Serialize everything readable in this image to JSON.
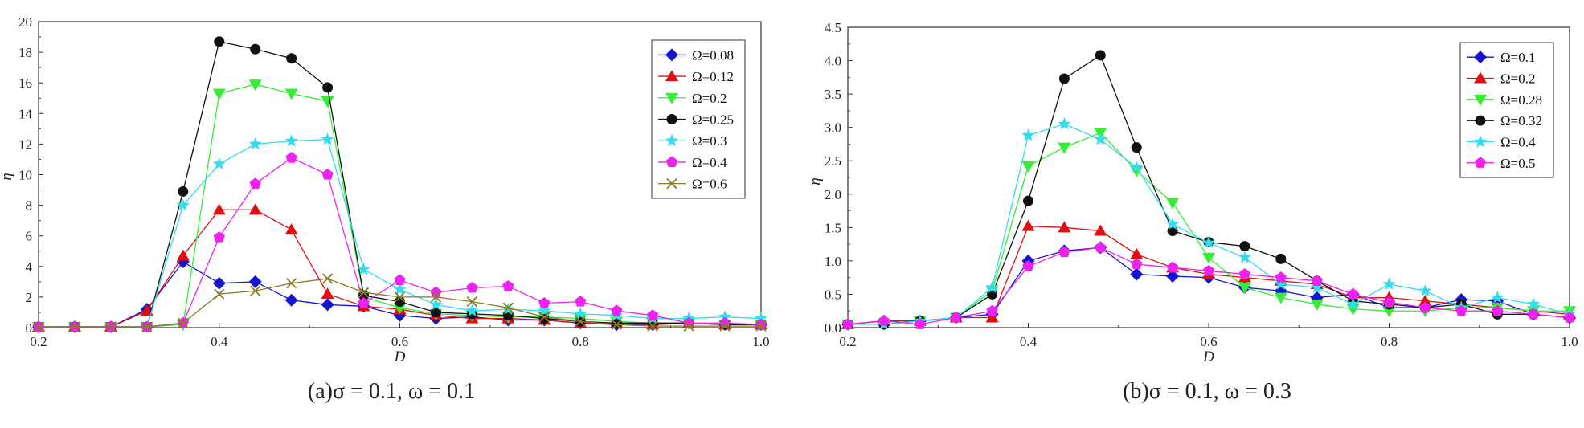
{
  "chart_data": [
    {
      "type": "line",
      "caption": "(a)σ = 0.1, ω = 0.1",
      "xlabel": "D",
      "ylabel": "η",
      "xlim": [
        0.2,
        1.0
      ],
      "ylim": [
        0,
        20
      ],
      "xticks": [
        "0.2",
        "0.4",
        "0.6",
        "0.8",
        "1.0"
      ],
      "yticks": [
        "0",
        "2",
        "4",
        "6",
        "8",
        "10",
        "12",
        "14",
        "16",
        "18",
        "20"
      ],
      "legend_position": "top-right",
      "x": [
        0.2,
        0.24,
        0.28,
        0.32,
        0.36,
        0.4,
        0.44,
        0.48,
        0.52,
        0.56,
        0.6,
        0.64,
        0.68,
        0.72,
        0.76,
        0.8,
        0.84,
        0.88,
        0.92,
        0.96,
        1.0
      ],
      "series": [
        {
          "name": "Ω=0.08",
          "color": "#1515d0",
          "marker": "diamond",
          "values": [
            0.05,
            0.05,
            0.05,
            1.2,
            4.3,
            2.9,
            3.0,
            1.8,
            1.5,
            1.4,
            0.8,
            0.6,
            0.7,
            0.5,
            0.5,
            0.3,
            0.2,
            0.2,
            0.3,
            0.2,
            0.2
          ]
        },
        {
          "name": "Ω=0.12",
          "color": "#e01010",
          "marker": "triangle-up",
          "values": [
            0.05,
            0.05,
            0.05,
            1.1,
            4.7,
            7.7,
            7.7,
            6.4,
            2.2,
            1.4,
            1.2,
            0.8,
            0.6,
            0.6,
            0.5,
            0.3,
            0.3,
            0.2,
            0.3,
            0.2,
            0.2
          ]
        },
        {
          "name": "Ω=0.2",
          "color": "#33ee33",
          "marker": "triangle-down",
          "values": [
            0.05,
            0.05,
            0.05,
            0.05,
            0.2,
            15.3,
            15.9,
            15.3,
            14.8,
            2.0,
            1.3,
            0.9,
            0.8,
            0.7,
            0.7,
            0.6,
            0.4,
            0.3,
            0.3,
            0.2,
            0.2
          ]
        },
        {
          "name": "Ω=0.25",
          "color": "#111111",
          "marker": "circle",
          "values": [
            0.05,
            0.05,
            0.05,
            0.05,
            8.9,
            18.7,
            18.2,
            17.6,
            15.7,
            2.1,
            1.7,
            1.0,
            0.9,
            0.8,
            0.6,
            0.4,
            0.3,
            0.3,
            0.3,
            0.2,
            0.2
          ]
        },
        {
          "name": "Ω=0.3",
          "color": "#33ddee",
          "marker": "star",
          "values": [
            0.05,
            0.05,
            0.05,
            0.05,
            8.0,
            10.7,
            12.0,
            12.2,
            12.3,
            3.8,
            2.5,
            1.5,
            1.1,
            1.2,
            1.1,
            0.9,
            0.8,
            0.6,
            0.6,
            0.7,
            0.6
          ]
        },
        {
          "name": "Ω=0.4",
          "color": "#ee22ee",
          "marker": "pentagon",
          "values": [
            0.05,
            0.05,
            0.05,
            0.05,
            0.3,
            5.9,
            9.4,
            11.1,
            10.0,
            1.6,
            3.1,
            2.3,
            2.6,
            2.7,
            1.6,
            1.7,
            1.1,
            0.8,
            0.3,
            0.3,
            0.2
          ]
        },
        {
          "name": "Ω=0.6",
          "color": "#8a7a20",
          "marker": "x",
          "values": [
            0.05,
            0.05,
            0.05,
            0.05,
            0.3,
            2.2,
            2.4,
            2.9,
            3.2,
            2.3,
            2.0,
            2.0,
            1.7,
            1.3,
            0.7,
            0.4,
            0.2,
            0.1,
            0.1,
            0.1,
            0.1
          ]
        }
      ]
    },
    {
      "type": "line",
      "caption": "(b)σ = 0.1, ω = 0.3",
      "xlabel": "D",
      "ylabel": "η",
      "xlim": [
        0.2,
        1.0
      ],
      "ylim": [
        0,
        4.5
      ],
      "xticks": [
        "0.2",
        "0.4",
        "0.6",
        "0.8",
        "1.0"
      ],
      "yticks": [
        "0.0",
        "0.5",
        "1.0",
        "1.5",
        "2.0",
        "2.5",
        "3.0",
        "3.5",
        "4.0",
        "4.5"
      ],
      "legend_position": "top-right",
      "x": [
        0.2,
        0.24,
        0.28,
        0.32,
        0.36,
        0.4,
        0.44,
        0.48,
        0.52,
        0.56,
        0.6,
        0.64,
        0.68,
        0.72,
        0.76,
        0.8,
        0.84,
        0.88,
        0.92,
        0.96,
        1.0
      ],
      "series": [
        {
          "name": "Ω=0.1",
          "color": "#1515d0",
          "marker": "diamond",
          "values": [
            0.05,
            0.1,
            0.1,
            0.15,
            0.2,
            1.0,
            1.15,
            1.2,
            0.8,
            0.77,
            0.75,
            0.6,
            0.55,
            0.45,
            0.5,
            0.3,
            0.3,
            0.42,
            0.4,
            0.2,
            0.15
          ]
        },
        {
          "name": "Ω=0.2",
          "color": "#e01010",
          "marker": "triangle-up",
          "values": [
            0.05,
            0.1,
            0.1,
            0.15,
            0.15,
            1.52,
            1.5,
            1.45,
            1.1,
            0.9,
            0.8,
            0.75,
            0.7,
            0.65,
            0.45,
            0.45,
            0.4,
            0.35,
            0.3,
            0.25,
            0.2
          ]
        },
        {
          "name": "Ω=0.28",
          "color": "#33ee33",
          "marker": "triangle-down",
          "values": [
            0.05,
            0.05,
            0.1,
            0.15,
            0.55,
            2.42,
            2.7,
            2.92,
            2.35,
            1.87,
            1.05,
            0.6,
            0.45,
            0.35,
            0.28,
            0.25,
            0.25,
            0.3,
            0.3,
            0.25,
            0.25
          ]
        },
        {
          "name": "Ω=0.32",
          "color": "#111111",
          "marker": "circle",
          "values": [
            0.05,
            0.05,
            0.1,
            0.15,
            0.5,
            1.9,
            3.73,
            4.08,
            2.7,
            1.45,
            1.28,
            1.22,
            1.03,
            0.7,
            0.4,
            0.35,
            0.3,
            0.35,
            0.2,
            0.2,
            0.15
          ]
        },
        {
          "name": "Ω=0.4",
          "color": "#33ddee",
          "marker": "star",
          "values": [
            0.05,
            0.05,
            0.1,
            0.15,
            0.6,
            2.88,
            3.05,
            2.82,
            2.4,
            1.55,
            1.27,
            1.05,
            0.65,
            0.6,
            0.35,
            0.65,
            0.55,
            0.3,
            0.45,
            0.35,
            0.2
          ]
        },
        {
          "name": "Ω=0.5",
          "color": "#ee22ee",
          "marker": "pentagon",
          "values": [
            0.05,
            0.1,
            0.05,
            0.15,
            0.25,
            0.92,
            1.13,
            1.2,
            0.95,
            0.9,
            0.85,
            0.8,
            0.75,
            0.7,
            0.5,
            0.38,
            0.3,
            0.25,
            0.25,
            0.2,
            0.15
          ]
        }
      ]
    }
  ]
}
